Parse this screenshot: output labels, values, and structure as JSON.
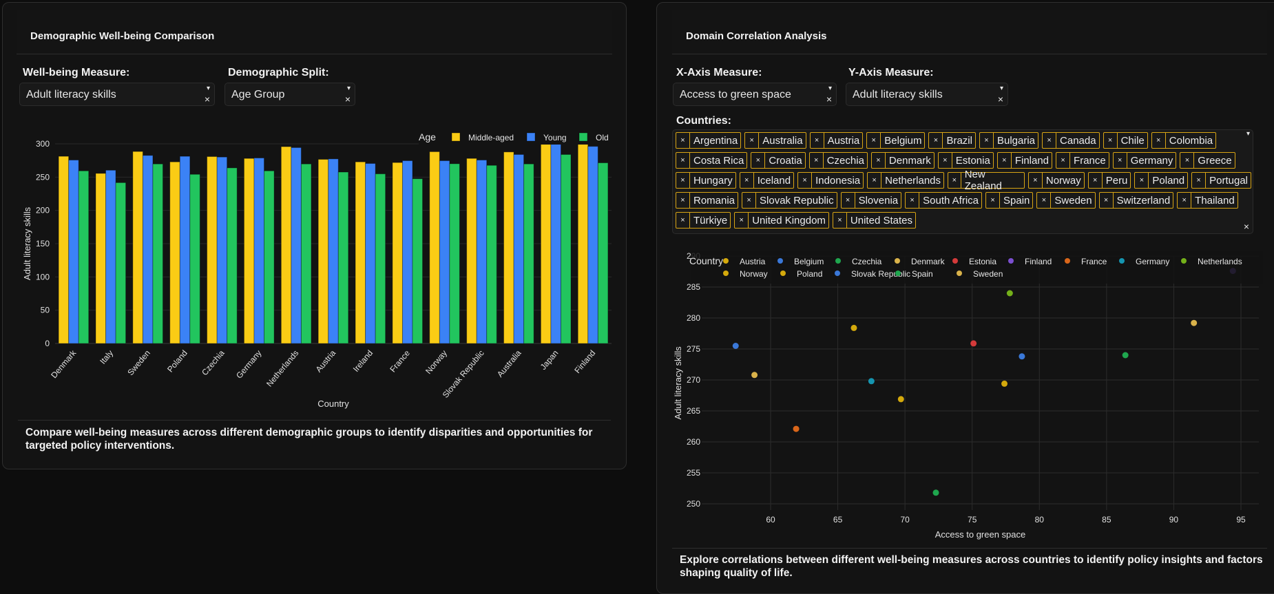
{
  "left_panel": {
    "title": "Demographic Well-being Comparison",
    "measure_label": "Well-being Measure:",
    "measure_value": "Adult literacy skills",
    "split_label": "Demographic Split:",
    "split_value": "Age Group",
    "description": "Compare well-being measures across different demographic groups to identify disparities and opportunities for targeted policy interventions."
  },
  "right_panel": {
    "title": "Domain Correlation Analysis",
    "x_label": "X-Axis Measure:",
    "x_value": "Access to green space",
    "y_label": "Y-Axis Measure:",
    "y_value": "Adult literacy skills",
    "countries_label": "Countries:",
    "countries": [
      "Argentina",
      "Australia",
      "Austria",
      "Belgium",
      "Brazil",
      "Bulgaria",
      "Canada",
      "Chile",
      "Colombia",
      "Costa Rica",
      "Croatia",
      "Czechia",
      "Denmark",
      "Estonia",
      "Finland",
      "France",
      "Germany",
      "Greece",
      "Hungary",
      "Iceland",
      "Indonesia",
      "Netherlands",
      "New Zealand",
      "Norway",
      "Peru",
      "Poland",
      "Portugal",
      "Romania",
      "Slovak Republic",
      "Slovenia",
      "South Africa",
      "Spain",
      "Sweden",
      "Switzerland",
      "Thailand",
      "Türkiye",
      "United Kingdom",
      "United States"
    ],
    "country_rows": [
      9,
      9,
      9,
      8,
      3
    ],
    "description": "Explore correlations between different well-being measures across countries to identify policy insights and factors shaping quality of life."
  },
  "icons": {
    "caret": "▾",
    "clear": "×",
    "tag_remove": "×"
  },
  "chart_data": [
    {
      "type": "bar",
      "title": "",
      "xlabel": "Country",
      "ylabel": "Adult literacy skills",
      "ylim": [
        0,
        300
      ],
      "yticks": [
        0,
        50,
        100,
        150,
        200,
        250,
        300
      ],
      "grid": true,
      "legend_title": "Age",
      "legend_position": "top-right",
      "categories": [
        "Denmark",
        "Italy",
        "Sweden",
        "Poland",
        "Czechia",
        "Germany",
        "Netherlands",
        "Austria",
        "Ireland",
        "France",
        "Norway",
        "Slovak Republic",
        "Australia",
        "Japan",
        "Finland"
      ],
      "series": [
        {
          "name": "Middle-aged",
          "color": "#facc15",
          "values": [
            281.3,
            255.6,
            288.5,
            272.9,
            280.9,
            278.1,
            295.8,
            276.7,
            272.9,
            271.9,
            288.2,
            278.1,
            287.8,
            307.6,
            303.8
          ]
        },
        {
          "name": "Young",
          "color": "#3b82f6",
          "values": [
            275.7,
            260.4,
            282.6,
            281.3,
            280.2,
            278.8,
            294.4,
            277.4,
            270.5,
            274.7,
            274.7,
            275.7,
            284.0,
            299.7,
            296.2
          ]
        },
        {
          "name": "Old",
          "color": "#22c55e",
          "values": [
            259.4,
            241.7,
            269.8,
            254.2,
            263.9,
            259.4,
            269.8,
            257.6,
            254.9,
            247.6,
            270.1,
            267.7,
            269.8,
            284.0,
            271.5
          ]
        }
      ]
    },
    {
      "type": "scatter",
      "title": "",
      "xlabel": "Access to green space",
      "ylabel": "Adult literacy skills",
      "xlim": [
        55.7,
        96.8
      ],
      "ylim": [
        249,
        290
      ],
      "xticks": [
        60,
        65,
        70,
        75,
        80,
        85,
        90,
        95
      ],
      "yticks": [
        250,
        255,
        260,
        265,
        270,
        275,
        280,
        285,
        290
      ],
      "grid": true,
      "legend_title": "Country",
      "legend_position": "top",
      "points": [
        {
          "name": "Austria",
          "color": "#d4a90c",
          "x": 77.4,
          "y": 269.4
        },
        {
          "name": "Belgium",
          "color": "#3a78d8",
          "x": 78.7,
          "y": 273.8
        },
        {
          "name": "Czechia",
          "color": "#1fa64e",
          "x": 86.4,
          "y": 274.0
        },
        {
          "name": "Denmark",
          "color": "#d9b24a",
          "x": 58.8,
          "y": 270.8
        },
        {
          "name": "Estonia",
          "color": "#d33a3a",
          "x": 75.1,
          "y": 275.9
        },
        {
          "name": "Finland",
          "color": "#7b4fd0",
          "x": 94.4,
          "y": 287.6
        },
        {
          "name": "France",
          "color": "#d9661a",
          "x": 61.9,
          "y": 262.1
        },
        {
          "name": "Germany",
          "color": "#1595b0",
          "x": 67.5,
          "y": 269.8
        },
        {
          "name": "Netherlands",
          "color": "#74b01a",
          "x": 77.8,
          "y": 284.0
        },
        {
          "name": "Norway",
          "color": "#d4a90c",
          "x": 66.2,
          "y": 278.4
        },
        {
          "name": "Poland",
          "color": "#d4a90c",
          "x": 69.7,
          "y": 266.9
        },
        {
          "name": "Slovak Republic",
          "color": "#3a78d8",
          "x": 57.4,
          "y": 275.5
        },
        {
          "name": "Spain",
          "color": "#1fa64e",
          "x": 72.3,
          "y": 251.8
        },
        {
          "name": "Sweden",
          "color": "#d9b24a",
          "x": 91.5,
          "y": 279.2
        }
      ]
    }
  ]
}
